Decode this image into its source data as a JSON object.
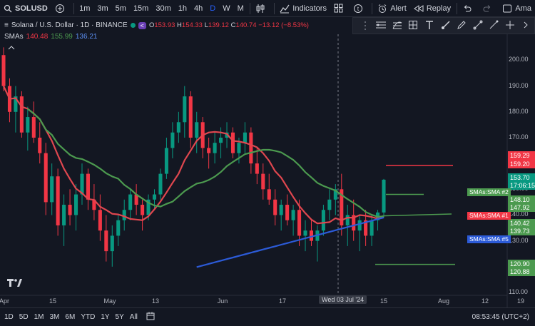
{
  "toolbar": {
    "symbol": "SOLUSD",
    "intervals": [
      "1m",
      "3m",
      "5m",
      "15m",
      "30m",
      "1h",
      "4h",
      "D",
      "W",
      "M"
    ],
    "active_interval": "D",
    "indicators_label": "Indicators",
    "alert_label": "Alert",
    "replay_label": "Replay",
    "account_label": "Ama"
  },
  "legend": {
    "title": "Solana / U.S. Dollar · 1D · BINANCE",
    "badge": "<",
    "o_key": "O",
    "o": "153.93",
    "h_key": "H",
    "h": "154.33",
    "l_key": "L",
    "l": "139.12",
    "c_key": "C",
    "c": "140.74",
    "change": "−13.12 (−8.53%)",
    "sma_label": "SMAs",
    "sma1": "140.48",
    "sma2": "155.99",
    "sma3": "136.21"
  },
  "price_scale": {
    "ticks": [
      "200.00",
      "190.00",
      "180.00",
      "170.00",
      "160.00",
      "150.00",
      "140.00",
      "130.00",
      "120.00",
      "110.00"
    ],
    "labels": {
      "red1": "159.29",
      "red2": "159.20",
      "price": "153.70",
      "countdown": "17:06:15",
      "g1": "148.10",
      "g2": "147.92",
      "sma1_val": "140.42",
      "g3": "139.73",
      "g4": "120.90",
      "g5": "120.88"
    },
    "tags": {
      "sma2": "SMAs:SMA #2",
      "sma1": "SMAs:SMA #1",
      "sma5": "SMAs:SMA #5"
    }
  },
  "time_scale": {
    "ticks": [
      "Apr",
      "15",
      "May",
      "13",
      "Jun",
      "17",
      "15",
      "Aug",
      "12",
      "19"
    ],
    "crosshair": "Wed 03 Jul '24"
  },
  "bottom": {
    "ranges": [
      "1D",
      "5D",
      "1M",
      "3M",
      "6M",
      "YTD",
      "1Y",
      "5Y",
      "All"
    ],
    "clock": "08:53:45 (UTC+2)"
  },
  "colors": {
    "up": "#089981",
    "down": "#f23645",
    "sma_red": "#e0474f",
    "sma_green": "#4c9a4f",
    "sma_blue": "#2c5bd8"
  },
  "chart_data": {
    "type": "candlestick",
    "title": "Solana / U.S. Dollar · 1D · BINANCE",
    "yaxis_ticks": [
      110,
      120,
      130,
      140,
      150,
      160,
      170,
      180,
      190,
      200
    ],
    "ylim": [
      110,
      204
    ],
    "x_ticks": [
      "Apr",
      "15",
      "May",
      "13",
      "Jun",
      "17",
      "15",
      "Aug",
      "12",
      "19"
    ],
    "candles": [
      {
        "o": 202,
        "h": 205,
        "l": 188,
        "c": 190
      },
      {
        "o": 190,
        "h": 193,
        "l": 176,
        "c": 180
      },
      {
        "o": 180,
        "h": 190,
        "l": 172,
        "c": 186
      },
      {
        "o": 186,
        "h": 188,
        "l": 170,
        "c": 172
      },
      {
        "o": 172,
        "h": 182,
        "l": 165,
        "c": 178
      },
      {
        "o": 178,
        "h": 184,
        "l": 168,
        "c": 170
      },
      {
        "o": 170,
        "h": 176,
        "l": 160,
        "c": 164
      },
      {
        "o": 164,
        "h": 168,
        "l": 140,
        "c": 145
      },
      {
        "o": 145,
        "h": 160,
        "l": 140,
        "c": 155
      },
      {
        "o": 155,
        "h": 158,
        "l": 132,
        "c": 136
      },
      {
        "o": 136,
        "h": 148,
        "l": 128,
        "c": 144
      },
      {
        "o": 144,
        "h": 150,
        "l": 136,
        "c": 140
      },
      {
        "o": 140,
        "h": 152,
        "l": 134,
        "c": 148
      },
      {
        "o": 148,
        "h": 160,
        "l": 144,
        "c": 156
      },
      {
        "o": 156,
        "h": 158,
        "l": 142,
        "c": 146
      },
      {
        "o": 146,
        "h": 152,
        "l": 138,
        "c": 142
      },
      {
        "o": 142,
        "h": 148,
        "l": 130,
        "c": 134
      },
      {
        "o": 134,
        "h": 140,
        "l": 122,
        "c": 126
      },
      {
        "o": 126,
        "h": 136,
        "l": 120,
        "c": 132
      },
      {
        "o": 132,
        "h": 140,
        "l": 128,
        "c": 138
      },
      {
        "o": 138,
        "h": 146,
        "l": 134,
        "c": 142
      },
      {
        "o": 142,
        "h": 150,
        "l": 138,
        "c": 148
      },
      {
        "o": 148,
        "h": 152,
        "l": 140,
        "c": 144
      },
      {
        "o": 144,
        "h": 146,
        "l": 134,
        "c": 140
      },
      {
        "o": 140,
        "h": 148,
        "l": 138,
        "c": 146
      },
      {
        "o": 146,
        "h": 150,
        "l": 142,
        "c": 148
      },
      {
        "o": 148,
        "h": 158,
        "l": 146,
        "c": 156
      },
      {
        "o": 156,
        "h": 170,
        "l": 154,
        "c": 166
      },
      {
        "o": 166,
        "h": 176,
        "l": 162,
        "c": 172
      },
      {
        "o": 172,
        "h": 180,
        "l": 168,
        "c": 176
      },
      {
        "o": 176,
        "h": 190,
        "l": 170,
        "c": 186
      },
      {
        "o": 186,
        "h": 188,
        "l": 166,
        "c": 170
      },
      {
        "o": 170,
        "h": 180,
        "l": 164,
        "c": 176
      },
      {
        "o": 176,
        "h": 178,
        "l": 162,
        "c": 166
      },
      {
        "o": 166,
        "h": 170,
        "l": 158,
        "c": 164
      },
      {
        "o": 164,
        "h": 172,
        "l": 160,
        "c": 168
      },
      {
        "o": 168,
        "h": 174,
        "l": 162,
        "c": 170
      },
      {
        "o": 170,
        "h": 176,
        "l": 166,
        "c": 172
      },
      {
        "o": 172,
        "h": 174,
        "l": 162,
        "c": 164
      },
      {
        "o": 164,
        "h": 170,
        "l": 160,
        "c": 168
      },
      {
        "o": 168,
        "h": 176,
        "l": 164,
        "c": 172
      },
      {
        "o": 172,
        "h": 174,
        "l": 156,
        "c": 160
      },
      {
        "o": 160,
        "h": 166,
        "l": 152,
        "c": 156
      },
      {
        "o": 156,
        "h": 160,
        "l": 146,
        "c": 150
      },
      {
        "o": 150,
        "h": 156,
        "l": 144,
        "c": 146
      },
      {
        "o": 146,
        "h": 150,
        "l": 136,
        "c": 140
      },
      {
        "o": 140,
        "h": 146,
        "l": 134,
        "c": 144
      },
      {
        "o": 144,
        "h": 148,
        "l": 136,
        "c": 138
      },
      {
        "o": 138,
        "h": 144,
        "l": 132,
        "c": 142
      },
      {
        "o": 142,
        "h": 146,
        "l": 128,
        "c": 132
      },
      {
        "o": 132,
        "h": 138,
        "l": 126,
        "c": 134
      },
      {
        "o": 134,
        "h": 138,
        "l": 128,
        "c": 130
      },
      {
        "o": 130,
        "h": 136,
        "l": 122,
        "c": 134
      },
      {
        "o": 134,
        "h": 144,
        "l": 132,
        "c": 142
      },
      {
        "o": 142,
        "h": 150,
        "l": 138,
        "c": 146
      },
      {
        "o": 146,
        "h": 152,
        "l": 140,
        "c": 150
      },
      {
        "o": 150,
        "h": 156,
        "l": 132,
        "c": 136
      },
      {
        "o": 136,
        "h": 144,
        "l": 128,
        "c": 140
      },
      {
        "o": 140,
        "h": 146,
        "l": 130,
        "c": 134
      },
      {
        "o": 134,
        "h": 140,
        "l": 126,
        "c": 138
      },
      {
        "o": 138,
        "h": 142,
        "l": 128,
        "c": 132
      },
      {
        "o": 132,
        "h": 140,
        "l": 128,
        "c": 138
      },
      {
        "o": 138,
        "h": 142,
        "l": 134,
        "c": 141
      },
      {
        "o": 141,
        "h": 154,
        "l": 139,
        "c": 153.7
      }
    ]
  }
}
